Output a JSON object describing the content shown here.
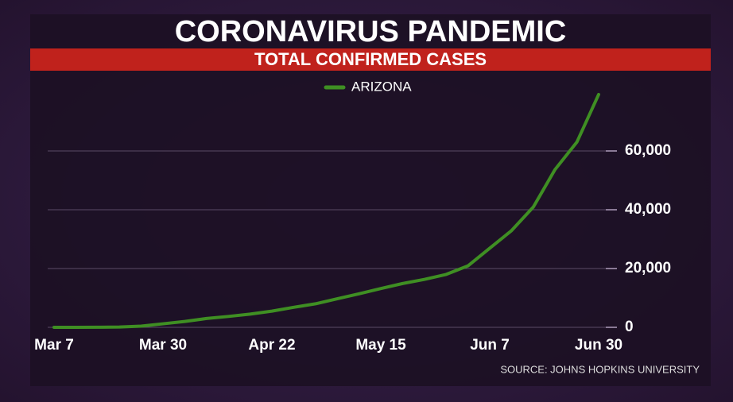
{
  "chart_data": {
    "type": "line",
    "title": "CORONAVIRUS PANDEMIC",
    "subtitle": "TOTAL CONFIRMED CASES",
    "source": "SOURCE: JOHNS HOPKINS UNIVERSITY",
    "categories": [
      "Mar 7",
      null,
      null,
      null,
      null,
      "Mar 30",
      null,
      null,
      null,
      null,
      "Apr 22",
      null,
      null,
      null,
      null,
      "May 15",
      null,
      null,
      null,
      null,
      "Jun 7",
      null,
      null,
      null,
      null,
      "Jun 30"
    ],
    "series": [
      {
        "name": "ARIZONA",
        "color": "#3f8f23",
        "values": [
          0,
          10,
          20,
          100,
          400,
          1200,
          2000,
          3000,
          3700,
          4500,
          5500,
          6800,
          8000,
          9700,
          11400,
          13200,
          14900,
          16300,
          18000,
          20900,
          26900,
          32900,
          40900,
          53700,
          63000,
          79200
        ]
      }
    ],
    "ylim": [
      0,
      85000
    ],
    "yticks": [
      0,
      {
        "value": 20000,
        "label": "20,000"
      },
      {
        "value": 40000,
        "label": "40,000"
      },
      {
        "value": 60000,
        "label": "60,000"
      }
    ],
    "grid": true,
    "legend": "top"
  }
}
